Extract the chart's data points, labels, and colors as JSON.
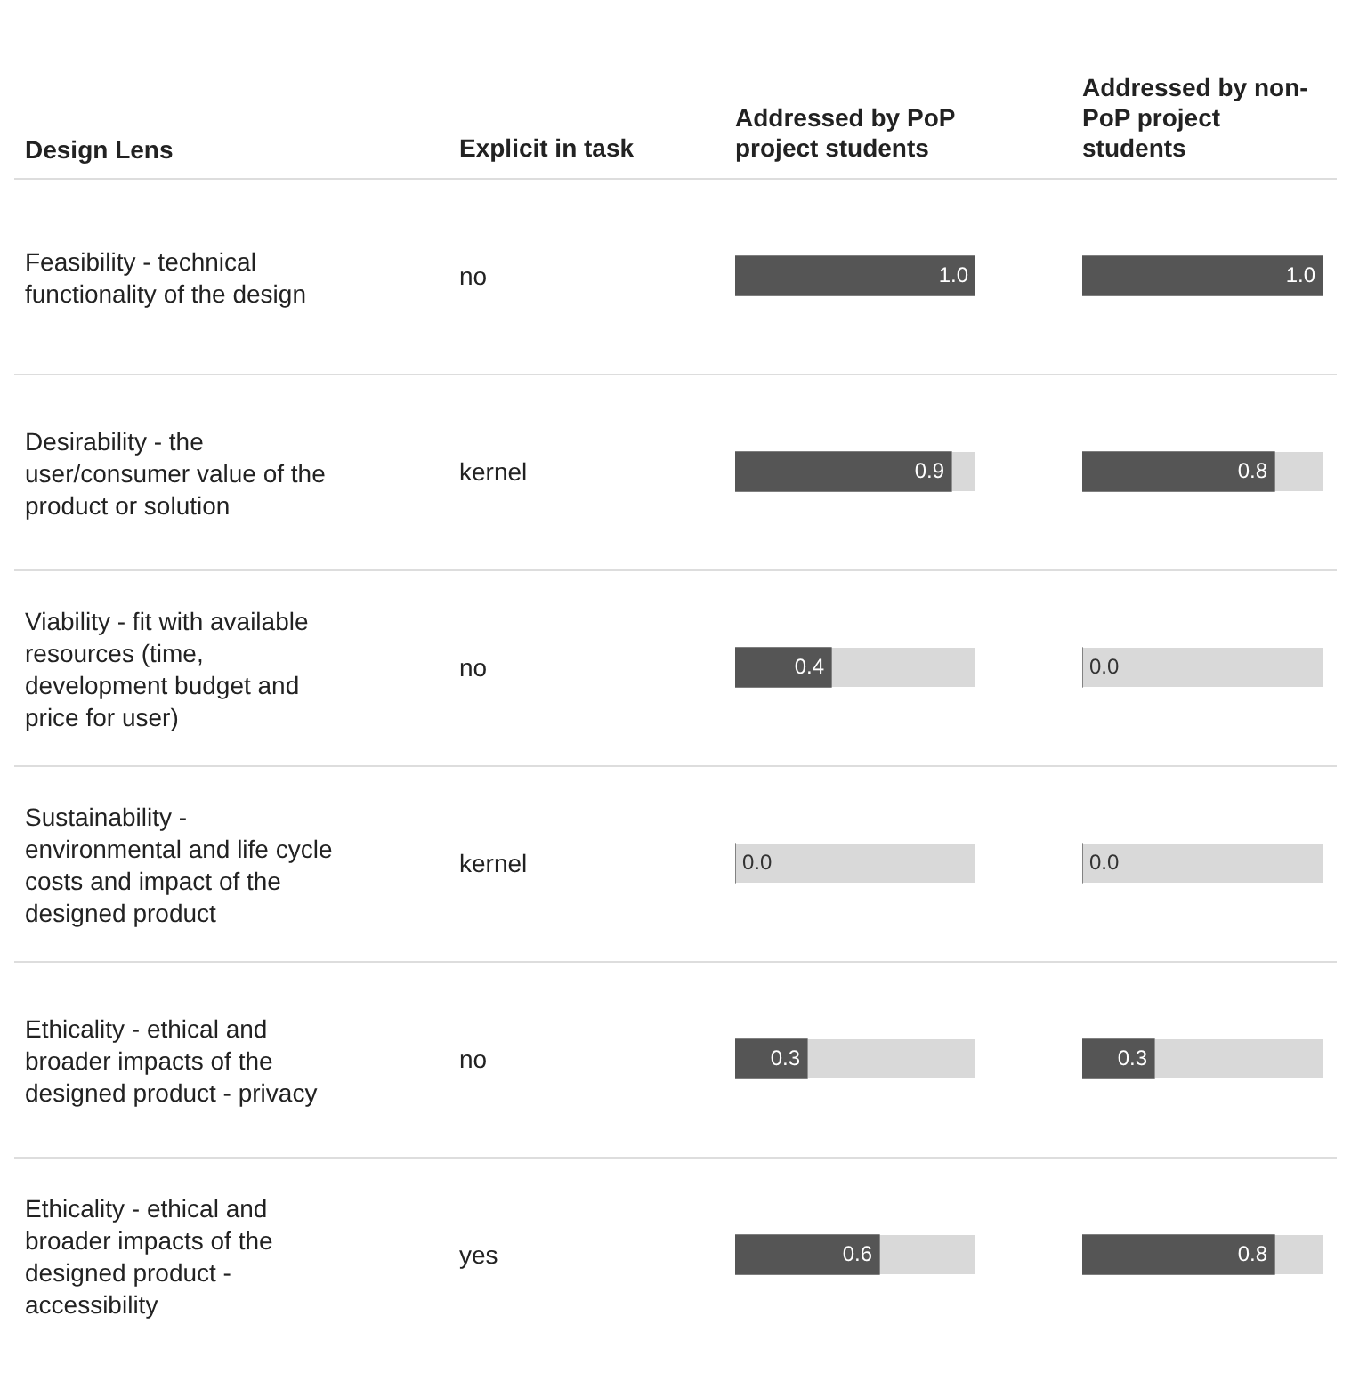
{
  "chart_data": [
    {
      "type": "bar",
      "orientation": "horizontal",
      "title": "Addressed by PoP project students",
      "ylabel": "Design Lens",
      "categories": [
        "Feasibility - technical functionality of the design",
        "Desirability - the user/consumer value of the product or solution",
        "Viability - fit with available resources (time, development budget and price for user)",
        "Sustainability - environmental and life cycle costs and impact of the designed product",
        "Ethicality - ethical and broader impacts of the designed product - privacy",
        "Ethicality - ethical and broader impacts of the designed product - accessibility"
      ],
      "values": [
        1.0,
        0.9,
        0.4,
        0.0,
        0.3,
        0.6
      ],
      "value_labels": [
        "1.0",
        "0.9",
        "0.4",
        "0.0",
        "0.3",
        "0.6"
      ],
      "color": "#555555",
      "xlim": [
        0,
        1
      ],
      "tick_labels": "y",
      "annotations": [
        "Explicit in task",
        "no",
        "kernel",
        "no",
        "kernel",
        "no",
        "yes"
      ]
    },
    {
      "type": "bar",
      "orientation": "horizontal",
      "title": "Addressed by non-PoP project students",
      "values": [
        1.0,
        0.8,
        0.0,
        0.0,
        0.3,
        0.8
      ],
      "value_labels": [
        "1.0",
        "0.8",
        "0.0",
        "0.0",
        "0.3",
        "0.8"
      ],
      "color": "#555555",
      "xlim": [
        0,
        1
      ],
      "tick_labels": false
    }
  ]
}
